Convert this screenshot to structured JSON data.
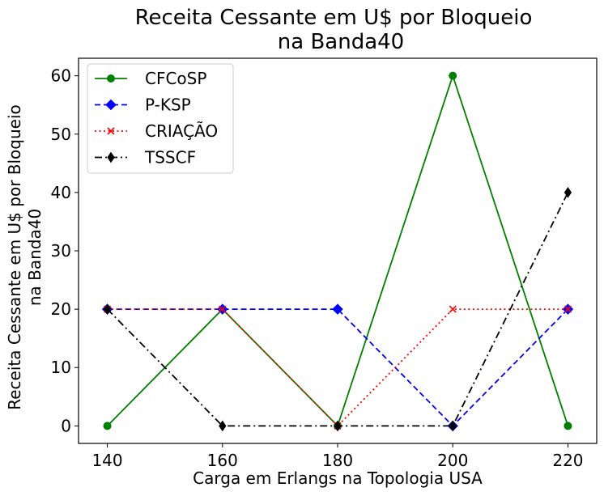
{
  "chart_data": {
    "type": "line",
    "title_lines": [
      "Receita Cessante em U$ por Bloqueio",
      "na Banda40"
    ],
    "xlabel": "Carga em Erlangs na Topologia USA",
    "ylabel_lines": [
      "Receita Cessante em U$ por Bloqueio",
      "na Banda40"
    ],
    "x": [
      140,
      160,
      180,
      200,
      220
    ],
    "xlim": [
      135,
      225
    ],
    "ylim": [
      -3,
      63
    ],
    "xticks": [
      140,
      160,
      180,
      200,
      220
    ],
    "yticks": [
      0,
      10,
      20,
      30,
      40,
      50,
      60
    ],
    "grid": false,
    "legend_position": "top-left",
    "series": [
      {
        "name": "CFCoSP",
        "values": [
          0,
          20,
          0,
          60,
          0
        ],
        "color": "#008000",
        "dash": "solid",
        "marker": "circle"
      },
      {
        "name": "P-KSP",
        "values": [
          20,
          20,
          20,
          0,
          20
        ],
        "color": "#0000ff",
        "dash": "dashed",
        "marker": "diamond"
      },
      {
        "name": "CRIAÇÃO",
        "values": [
          20,
          20,
          0,
          20,
          20
        ],
        "color": "#ff0000",
        "dash": "dotted",
        "marker": "x"
      },
      {
        "name": "TSSCF",
        "values": [
          20,
          0,
          0,
          0,
          40
        ],
        "color": "#000000",
        "dash": "dashdot",
        "marker": "thin-diamond"
      }
    ]
  }
}
